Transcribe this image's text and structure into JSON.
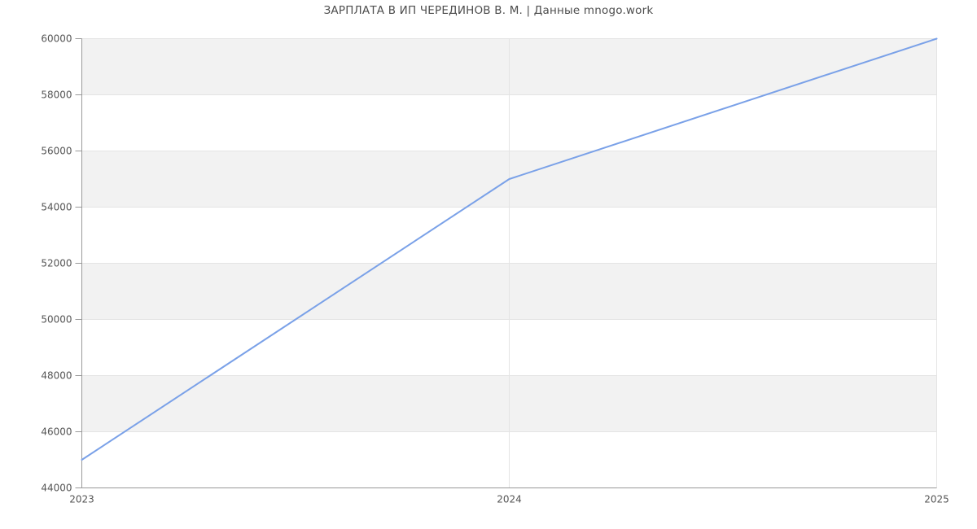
{
  "chart_data": {
    "type": "line",
    "title": "ЗАРПЛАТА В ИП ЧЕРЕДИНОВ В. М. | Данные mnogo.work",
    "x": [
      2023,
      2024,
      2025
    ],
    "x_tick_labels": [
      "2023",
      "2024",
      "2025"
    ],
    "values": [
      45000,
      55000,
      60000
    ],
    "ylim": [
      44000,
      60000
    ],
    "yticks": [
      44000,
      46000,
      48000,
      50000,
      52000,
      54000,
      56000,
      58000,
      60000
    ],
    "y_tick_labels": [
      "44000",
      "46000",
      "48000",
      "50000",
      "52000",
      "54000",
      "56000",
      "58000",
      "60000"
    ],
    "xlabel": "",
    "ylabel": "",
    "grid": true,
    "banded_rows": true,
    "legend_position": "none",
    "markers": false,
    "colors": {
      "line": "#7aa1e8",
      "band": "#f2f2f2",
      "gridline": "#e4e4e4",
      "axis": "#999999",
      "tick_label": "#555555",
      "title": "#4d4d4d",
      "background": "#ffffff"
    }
  }
}
